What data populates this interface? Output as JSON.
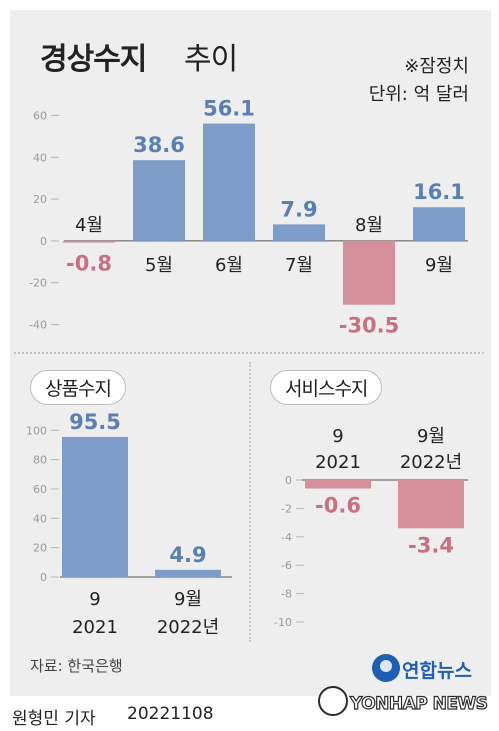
{
  "header": {
    "title_bold": "경상수지",
    "title_light": "추이",
    "note": "※잠정치",
    "unit": "단위: 억 달러"
  },
  "chart_data": [
    {
      "type": "bar",
      "categories": [
        "4월",
        "5월",
        "6월",
        "7월",
        "8월",
        "9월"
      ],
      "values": [
        -0.8,
        38.6,
        56.1,
        7.9,
        -30.5,
        16.1
      ],
      "value_labels": [
        "-0.8",
        "38.6",
        "56.1",
        "7.9",
        "-30.5",
        "16.1"
      ],
      "yticks": [
        60,
        40,
        20,
        0,
        -20,
        -40
      ],
      "ylim": [
        -45,
        65
      ],
      "title": "경상수지 추이"
    },
    {
      "type": "bar",
      "title": "상품수지",
      "categories": [
        [
          "9",
          "2021"
        ],
        [
          "9월",
          "2022년"
        ]
      ],
      "values": [
        95.5,
        4.9
      ],
      "value_labels": [
        "95.5",
        "4.9"
      ],
      "yticks": [
        100,
        80,
        60,
        40,
        20,
        0
      ],
      "ylim": [
        0,
        105
      ]
    },
    {
      "type": "bar",
      "title": "서비스수지",
      "categories": [
        [
          "9",
          "2021"
        ],
        [
          "9월",
          "2022년"
        ]
      ],
      "values": [
        -0.6,
        -3.4
      ],
      "value_labels": [
        "-0.6",
        "-3.4"
      ],
      "yticks": [
        0,
        -2,
        -4,
        -6,
        -8,
        -10
      ],
      "ylim": [
        -10,
        0
      ]
    }
  ],
  "colors": {
    "positive": "#7e9cc8",
    "negative": "#d48f9b",
    "positive_label": "#5a7fb5",
    "negative_label": "#c86f80",
    "panel": "#eeeeef"
  },
  "footer": {
    "source": "자료: 한국은행",
    "logo": "연합뉴스",
    "byline": "원형민 기자",
    "date": "20221108",
    "watermark": "YONHAP NEWS"
  }
}
